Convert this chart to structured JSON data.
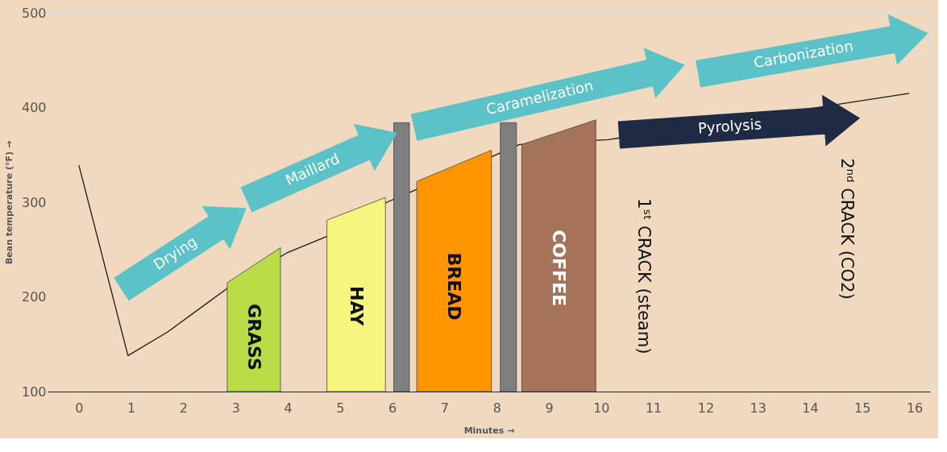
{
  "chart_data": {
    "type": "line",
    "xlabel": "Minutes →",
    "ylabel": "Bean temperature (°F) →",
    "xlim": [
      -0.6,
      16.3
    ],
    "xticks": [
      0,
      1,
      2,
      3,
      4,
      5,
      6,
      7,
      8,
      9,
      10,
      11,
      12,
      13,
      14,
      15,
      16
    ],
    "ylim": [
      100,
      500
    ],
    "yticks": [
      100,
      200,
      300,
      400,
      500
    ],
    "grid": false,
    "legend": false,
    "series": [
      {
        "color": "#1a1a1a",
        "x": [
          0,
          0.94,
          1.7,
          2.84,
          4.0,
          4.75,
          5.9,
          6.36,
          8.44,
          10.13,
          15.9
        ],
        "values": [
          339,
          138,
          163,
          209,
          247,
          264,
          300,
          311,
          361,
          366,
          415
        ]
      },
      {
        "type": "area",
        "name": "GRASS",
        "color": "#b9dc47",
        "x": [
          2.84,
          3.86
        ],
        "values": [
          215,
          252
        ]
      },
      {
        "type": "area",
        "name": "HAY",
        "color": "#f6f57e",
        "x": [
          4.75,
          5.87
        ],
        "values": [
          281,
          305
        ]
      },
      {
        "type": "area",
        "color": "#7f7f7f",
        "x": [
          6.03,
          6.33
        ],
        "values": [
          384,
          384
        ]
      },
      {
        "type": "area",
        "name": "BREAD",
        "color": "#ff9500",
        "x": [
          6.47,
          7.9
        ],
        "values": [
          322,
          355
        ]
      },
      {
        "type": "area",
        "color": "#7f7f7f",
        "x": [
          8.07,
          8.38
        ],
        "values": [
          384,
          384
        ]
      },
      {
        "type": "area",
        "name": "COFFEE",
        "color": "#a5735a",
        "x": [
          8.48,
          9.9
        ],
        "values": [
          361,
          387
        ]
      }
    ],
    "annotations": [
      "Drying",
      "Maillard",
      "Caramelization",
      "Carbonization",
      "Pyrolysis",
      "1ˢᵗ CRACK (steam)",
      "2ⁿᵈ CRACK (CO2)"
    ]
  }
}
